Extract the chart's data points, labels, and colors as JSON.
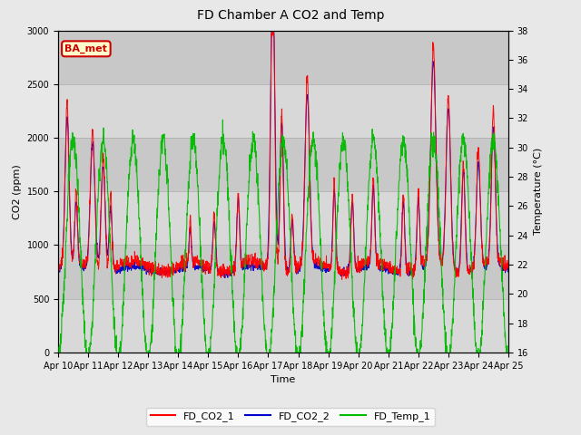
{
  "title": "FD Chamber A CO2 and Temp",
  "xlabel": "Time",
  "ylabel_left": "CO2 (ppm)",
  "ylabel_right": "Temperature (°C)",
  "ylim_left": [
    0,
    3000
  ],
  "ylim_right": [
    16,
    38
  ],
  "xtick_labels": [
    "Apr 10",
    "Apr 11",
    "Apr 12",
    "Apr 13",
    "Apr 14",
    "Apr 15",
    "Apr 16",
    "Apr 17",
    "Apr 18",
    "Apr 19",
    "Apr 20",
    "Apr 21",
    "Apr 22",
    "Apr 23",
    "Apr 24",
    "Apr 25"
  ],
  "legend_labels": [
    "FD_CO2_1",
    "FD_CO2_2",
    "FD_Temp_1"
  ],
  "legend_colors": [
    "#ff0000",
    "#0000cd",
    "#00bb00"
  ],
  "annotation_text": "BA_met",
  "annotation_color": "#cc0000",
  "annotation_bg": "#ffffcc",
  "fig_bg": "#e8e8e8",
  "plot_bg": "#dcdcdc",
  "title_fontsize": 10,
  "axis_fontsize": 8,
  "tick_fontsize": 7
}
